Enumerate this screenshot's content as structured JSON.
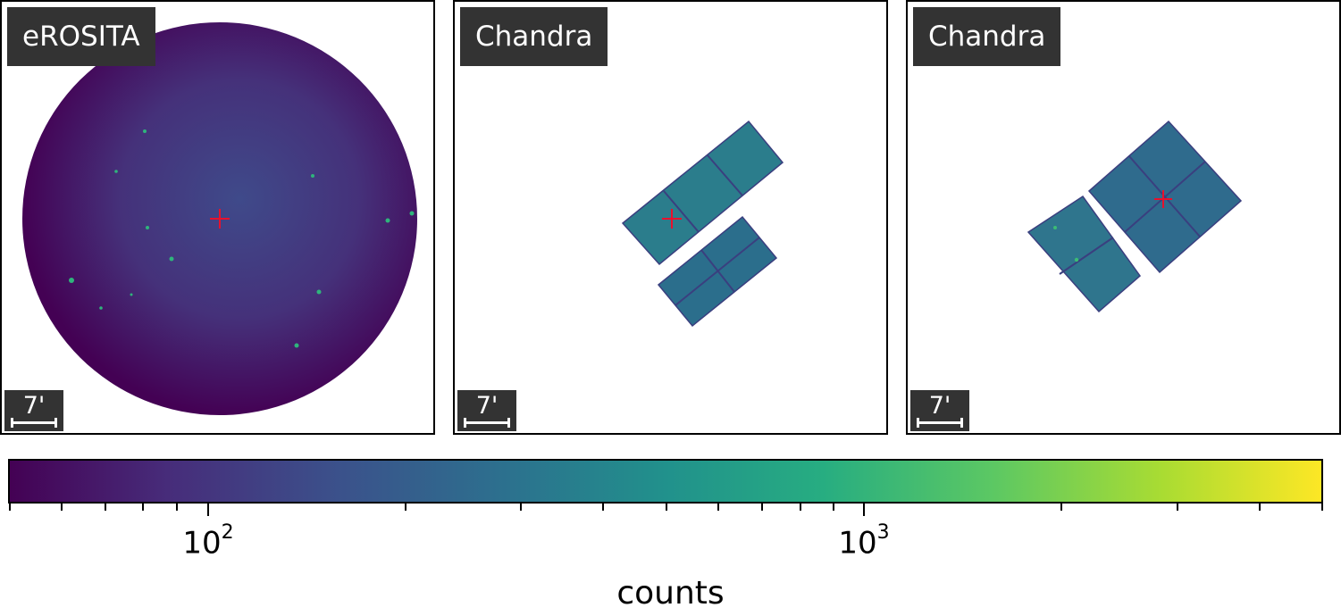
{
  "panels": [
    {
      "label": "eROSITA",
      "scale_bar": "7'",
      "field": "circle"
    },
    {
      "label": "Chandra",
      "scale_bar": "7'",
      "field": "tilted-ccds"
    },
    {
      "label": "Chandra",
      "scale_bar": "7'",
      "field": "tilted-ccds"
    }
  ],
  "colorbar": {
    "label": "counts",
    "scale": "log",
    "colormap": "viridis",
    "tick_labels": [
      {
        "base": "10",
        "exponent": "2"
      },
      {
        "base": "10",
        "exponent": "3"
      }
    ]
  },
  "colors": {
    "marker": "#e8112d",
    "label_background": "#333333",
    "field_low": "#46236f",
    "field_mid": "#2b7d8c"
  }
}
